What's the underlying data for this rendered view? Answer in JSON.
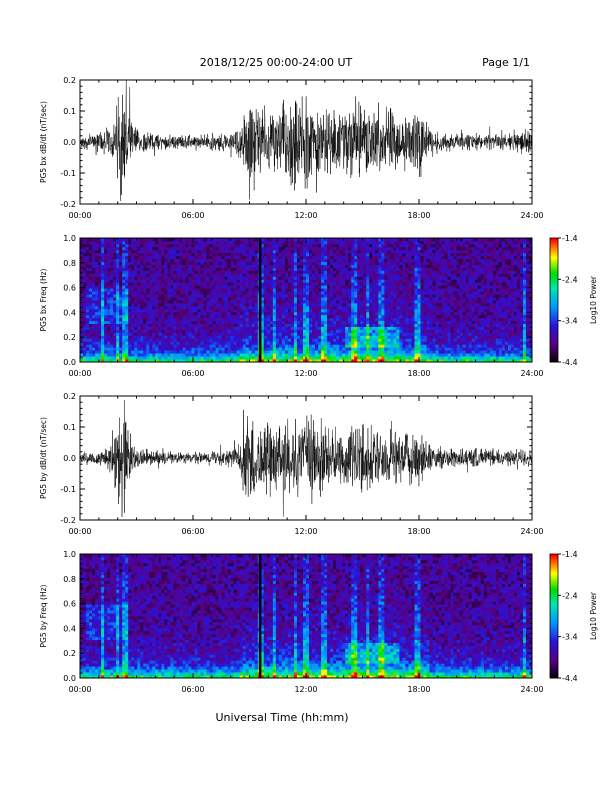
{
  "header": {
    "title": "2018/12/25  00:00-24:00 UT",
    "page": "Page 1/1"
  },
  "footer": {
    "xlabel": "Universal Time (hh:mm)"
  },
  "chart_data": [
    {
      "type": "line",
      "title": "",
      "ylabel": "PG5 bx dB/dt (nT/sec)",
      "xlim": [
        0,
        24
      ],
      "ylim": [
        -0.2,
        0.2
      ],
      "xticks": [
        "00:00",
        "06:00",
        "12:00",
        "18:00",
        "24:00"
      ],
      "yticks": [
        "-0.2",
        "-0.1",
        "0.0",
        "0.1",
        "0.2"
      ],
      "envelope": {
        "x_hours": [
          0,
          1,
          1.8,
          2.1,
          2.4,
          2.6,
          3.0,
          4.0,
          5.0,
          6.0,
          7.0,
          8.0,
          8.6,
          9.0,
          9.5,
          10.0,
          10.5,
          11.0,
          11.5,
          12.0,
          12.5,
          13.0,
          13.5,
          14.0,
          14.5,
          15.0,
          15.5,
          16.0,
          16.5,
          17.0,
          17.5,
          18.0,
          18.5,
          19.0,
          20.0,
          21.0,
          22.0,
          23.0,
          23.7,
          24.0
        ],
        "amplitude": [
          0.02,
          0.04,
          0.07,
          0.2,
          0.2,
          0.12,
          0.05,
          0.03,
          0.025,
          0.025,
          0.03,
          0.035,
          0.08,
          0.18,
          0.14,
          0.1,
          0.12,
          0.14,
          0.18,
          0.17,
          0.15,
          0.13,
          0.1,
          0.12,
          0.16,
          0.15,
          0.1,
          0.12,
          0.13,
          0.09,
          0.1,
          0.11,
          0.06,
          0.04,
          0.035,
          0.03,
          0.03,
          0.03,
          0.05,
          0.04
        ]
      }
    },
    {
      "type": "heatmap",
      "title": "",
      "ylabel": "PG5 bx Freq (Hz)",
      "xlim": [
        0,
        24
      ],
      "ylim": [
        0,
        1.0
      ],
      "xticks": [
        "00:00",
        "06:00",
        "12:00",
        "18:00",
        "24:00"
      ],
      "yticks": [
        "0.0",
        "0.2",
        "0.4",
        "0.6",
        "0.8",
        "1.0"
      ],
      "colorbar": {
        "label": "Log10 Power",
        "range": [
          -4.4,
          -1.4
        ],
        "ticks": [
          "-1.4",
          "-2.4",
          "-3.4",
          "-4.4"
        ]
      }
    },
    {
      "type": "line",
      "title": "",
      "ylabel": "PG5 by dB/dt (nT/sec)",
      "xlim": [
        0,
        24
      ],
      "ylim": [
        -0.2,
        0.2
      ],
      "xticks": [
        "00:00",
        "06:00",
        "12:00",
        "18:00",
        "24:00"
      ],
      "yticks": [
        "-0.2",
        "-0.1",
        "0.0",
        "0.1",
        "0.2"
      ],
      "envelope": {
        "x_hours": [
          0,
          1,
          1.8,
          2.1,
          2.4,
          2.6,
          3.0,
          4.0,
          5.0,
          6.0,
          7.0,
          8.0,
          8.6,
          9.0,
          9.5,
          10.0,
          10.5,
          11.0,
          11.5,
          12.0,
          12.5,
          13.0,
          13.5,
          14.0,
          14.5,
          15.0,
          15.5,
          16.0,
          16.5,
          17.0,
          17.5,
          18.0,
          18.5,
          19.0,
          20.0,
          21.0,
          22.0,
          23.0,
          23.7,
          24.0
        ],
        "amplitude": [
          0.02,
          0.03,
          0.07,
          0.2,
          0.2,
          0.1,
          0.04,
          0.025,
          0.02,
          0.02,
          0.025,
          0.03,
          0.07,
          0.2,
          0.12,
          0.13,
          0.15,
          0.17,
          0.14,
          0.16,
          0.2,
          0.13,
          0.1,
          0.09,
          0.14,
          0.12,
          0.11,
          0.1,
          0.13,
          0.1,
          0.09,
          0.12,
          0.06,
          0.04,
          0.035,
          0.035,
          0.03,
          0.03,
          0.04,
          0.03
        ]
      }
    },
    {
      "type": "heatmap",
      "title": "",
      "ylabel": "PG5 by Freq (Hz)",
      "xlim": [
        0,
        24
      ],
      "ylim": [
        0,
        1.0
      ],
      "xticks": [
        "00:00",
        "06:00",
        "12:00",
        "18:00",
        "24:00"
      ],
      "yticks": [
        "0.0",
        "0.2",
        "0.4",
        "0.6",
        "0.8",
        "1.0"
      ],
      "colorbar": {
        "label": "Log10 Power",
        "range": [
          -4.4,
          -1.4
        ],
        "ticks": [
          "-1.4",
          "-2.4",
          "-3.4",
          "-4.4"
        ]
      }
    }
  ]
}
